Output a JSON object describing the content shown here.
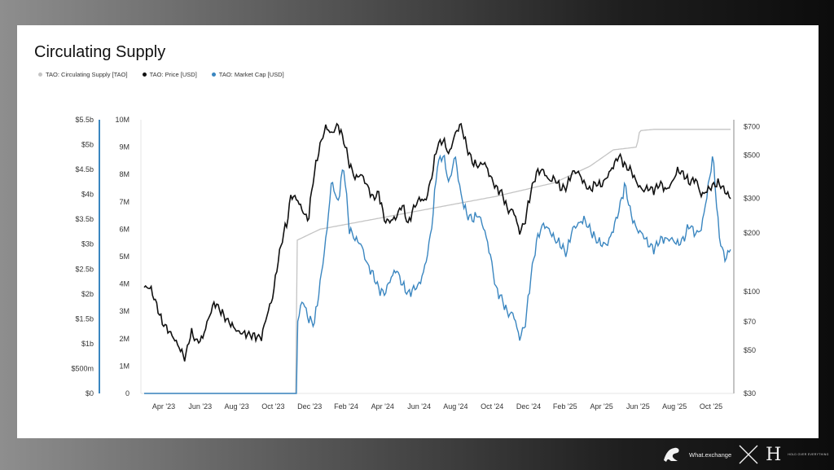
{
  "chart_data": {
    "type": "line",
    "title": "Circulating Supply",
    "legend": [
      {
        "name": "TAO: Circulating Supply [TAO]",
        "color": "#c4c4c4"
      },
      {
        "name": "TAO: Price [USD]",
        "color": "#111111"
      },
      {
        "name": "TAO: Market Cap [USD]",
        "color": "#3a86c0"
      }
    ],
    "x_ticks": [
      "Apr '23",
      "Jun '23",
      "Aug '23",
      "Oct '23",
      "Dec '23",
      "Feb '24",
      "Apr '24",
      "Jun '24",
      "Aug '24",
      "Oct '24",
      "Dec '24",
      "Feb '25",
      "Apr '25",
      "Jun '25",
      "Aug '25",
      "Oct '25"
    ],
    "x_range": [
      "Mar '23",
      "Nov '25"
    ],
    "axis_marketcap": {
      "label_ticks": [
        "$0",
        "$500m",
        "$1b",
        "$1.5b",
        "$2b",
        "$2.5b",
        "$3b",
        "$3.5b",
        "$4b",
        "$4.5b",
        "$5b",
        "$5.5b"
      ],
      "range": [
        0,
        5.5
      ]
    },
    "axis_supply": {
      "label_ticks": [
        "0",
        "1M",
        "2M",
        "3M",
        "4M",
        "5M",
        "6M",
        "7M",
        "8M",
        "9M",
        "10M"
      ],
      "range": [
        0,
        10
      ]
    },
    "axis_price": {
      "label_ticks": [
        "$30",
        "$50",
        "$70",
        "$100",
        "$200",
        "$300",
        "$500",
        "$700"
      ],
      "values": [
        30,
        50,
        70,
        100,
        200,
        300,
        500,
        700
      ],
      "scale": "log",
      "range": [
        30,
        760
      ]
    },
    "series": [
      {
        "name": "TAO: Circulating Supply [TAO]",
        "unit": "M TAO",
        "t": [
          0,
          0.26,
          0.261,
          0.3,
          0.4,
          0.5,
          0.6,
          0.7,
          0.72,
          0.76,
          0.8,
          0.84,
          0.845,
          0.87,
          0.9,
          1.0
        ],
        "values": [
          0,
          0,
          5.6,
          6.0,
          6.4,
          6.8,
          7.2,
          7.7,
          7.9,
          8.3,
          8.9,
          9.0,
          9.6,
          9.65,
          9.65,
          9.65
        ]
      },
      {
        "name": "TAO: Price [USD]",
        "unit": "USD",
        "t": [
          0,
          0.01,
          0.03,
          0.05,
          0.07,
          0.08,
          0.09,
          0.1,
          0.12,
          0.14,
          0.16,
          0.18,
          0.2,
          0.22,
          0.24,
          0.245,
          0.25,
          0.26,
          0.27,
          0.28,
          0.29,
          0.3,
          0.31,
          0.32,
          0.33,
          0.34,
          0.35,
          0.36,
          0.37,
          0.38,
          0.39,
          0.4,
          0.41,
          0.42,
          0.43,
          0.44,
          0.45,
          0.46,
          0.47,
          0.48,
          0.49,
          0.5,
          0.51,
          0.52,
          0.53,
          0.54,
          0.55,
          0.56,
          0.57,
          0.58,
          0.59,
          0.6,
          0.61,
          0.62,
          0.63,
          0.64,
          0.65,
          0.66,
          0.67,
          0.68,
          0.69,
          0.7,
          0.71,
          0.72,
          0.73,
          0.74,
          0.75,
          0.76,
          0.77,
          0.78,
          0.79,
          0.8,
          0.81,
          0.82,
          0.83,
          0.84,
          0.85,
          0.86,
          0.87,
          0.88,
          0.89,
          0.9,
          0.91,
          0.92,
          0.93,
          0.94,
          0.95,
          0.96,
          0.97,
          0.98,
          0.99,
          1.0
        ],
        "values": [
          105,
          105,
          70,
          58,
          45,
          62,
          55,
          58,
          88,
          72,
          62,
          60,
          58,
          95,
          210,
          235,
          310,
          300,
          260,
          230,
          400,
          560,
          700,
          640,
          720,
          600,
          450,
          380,
          400,
          350,
          300,
          320,
          230,
          230,
          240,
          280,
          220,
          270,
          300,
          290,
          380,
          560,
          600,
          500,
          640,
          720,
          550,
          460,
          440,
          460,
          390,
          340,
          320,
          260,
          260,
          200,
          230,
          330,
          410,
          420,
          370,
          380,
          340,
          340,
          410,
          410,
          360,
          330,
          360,
          350,
          390,
          440,
          500,
          440,
          420,
          360,
          330,
          340,
          330,
          360,
          330,
          360,
          420,
          400,
          360,
          380,
          310,
          330,
          350,
          360,
          330,
          300
        ]
      },
      {
        "name": "TAO: Market Cap [USD]",
        "unit": "$b",
        "t": [
          0,
          0.26,
          0.261,
          0.27,
          0.28,
          0.29,
          0.3,
          0.31,
          0.32,
          0.33,
          0.34,
          0.35,
          0.36,
          0.37,
          0.38,
          0.39,
          0.4,
          0.41,
          0.42,
          0.43,
          0.44,
          0.45,
          0.46,
          0.47,
          0.48,
          0.49,
          0.5,
          0.51,
          0.52,
          0.53,
          0.54,
          0.55,
          0.56,
          0.57,
          0.58,
          0.59,
          0.6,
          0.61,
          0.62,
          0.63,
          0.64,
          0.65,
          0.66,
          0.67,
          0.68,
          0.69,
          0.7,
          0.71,
          0.72,
          0.73,
          0.74,
          0.75,
          0.76,
          0.77,
          0.78,
          0.79,
          0.8,
          0.81,
          0.82,
          0.83,
          0.84,
          0.85,
          0.86,
          0.87,
          0.88,
          0.89,
          0.9,
          0.91,
          0.92,
          0.93,
          0.94,
          0.95,
          0.96,
          0.97,
          0.98,
          0.99,
          1.0
        ],
        "values": [
          0,
          0,
          1.4,
          1.9,
          1.5,
          1.4,
          2.2,
          3.1,
          4.3,
          3.8,
          4.6,
          3.3,
          3.1,
          3.0,
          2.6,
          2.4,
          2.1,
          2.0,
          2.3,
          2.5,
          2.2,
          2.0,
          2.1,
          2.2,
          2.6,
          3.3,
          4.6,
          4.8,
          4.2,
          4.8,
          4.0,
          3.6,
          3.5,
          3.6,
          3.3,
          2.8,
          2.1,
          1.9,
          1.6,
          1.6,
          1.1,
          1.4,
          2.4,
          3.1,
          3.4,
          3.3,
          3.1,
          3.0,
          2.8,
          3.3,
          3.4,
          3.5,
          3.3,
          3.1,
          3.0,
          3.0,
          3.3,
          3.7,
          4.2,
          3.6,
          3.3,
          3.2,
          3.0,
          2.9,
          3.1,
          3.1,
          3.1,
          3.0,
          3.1,
          3.4,
          3.2,
          3.3,
          4.0,
          4.8,
          3.2,
          2.7,
          2.9
        ]
      }
    ]
  },
  "footer": {
    "site": "What.exchange",
    "monogram": "H",
    "tagline": "HOLD OVER EVERYTHING"
  }
}
